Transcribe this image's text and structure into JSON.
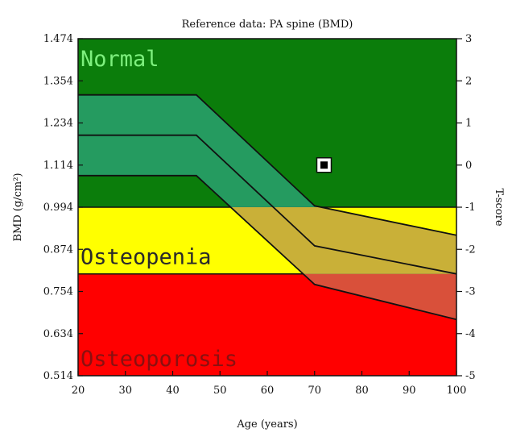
{
  "chart_data": {
    "type": "area",
    "title": "Reference data: PA spine (BMD)",
    "xlabel": "Age (years)",
    "ylabel": "BMD (g/cm²)",
    "ylabel_right": "T-score",
    "xlim": [
      20,
      100
    ],
    "ylim": [
      0.514,
      1.474
    ],
    "x_ticks": [
      20,
      30,
      40,
      50,
      60,
      70,
      80,
      90,
      100
    ],
    "y_ticks": [
      "0.514",
      "0.634",
      "0.754",
      "0.874",
      "0.994",
      "1.114",
      "1.234",
      "1.354",
      "1.474"
    ],
    "right_ticks": [
      "-5",
      "-4",
      "-3",
      "-2",
      "-1",
      "0",
      "1",
      "2",
      "3"
    ],
    "zones": [
      {
        "label": "Normal",
        "from": 0.994,
        "to": 1.474,
        "color": "#0b7d0b",
        "text_color": "#7ef07e"
      },
      {
        "label": "Osteopenia",
        "from": 0.804,
        "to": 0.994,
        "color": "#ffff00",
        "text_color": "#2a2a2a"
      },
      {
        "label": "Osteoporosis",
        "from": 0.514,
        "to": 0.804,
        "color": "#ff0000",
        "text_color": "#8a1010"
      }
    ],
    "reference_curves": {
      "x": [
        20,
        45,
        70,
        100
      ],
      "upper": [
        1.314,
        1.314,
        0.998,
        0.914
      ],
      "middle": [
        1.199,
        1.199,
        0.884,
        0.804
      ],
      "lower": [
        1.084,
        1.084,
        0.774,
        0.674
      ]
    },
    "patient_point": {
      "x": 72,
      "y": 1.114,
      "t_score": 0
    }
  }
}
